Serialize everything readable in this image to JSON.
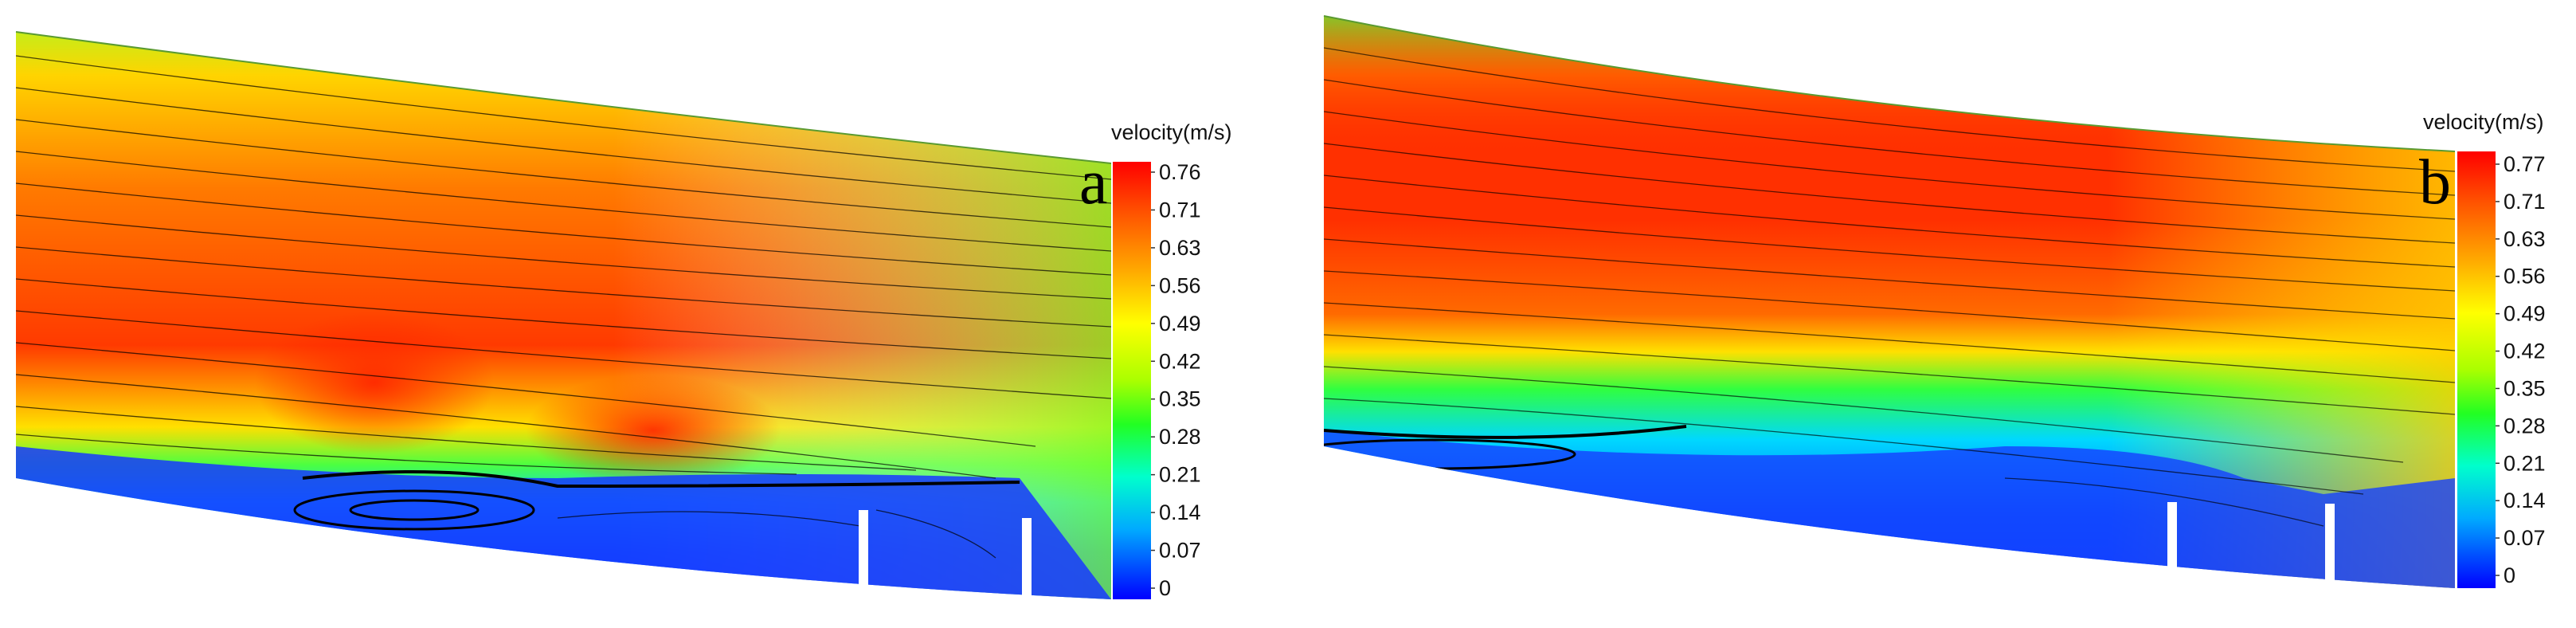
{
  "chart_data": [
    {
      "type": "heatmap",
      "panel_label": "a",
      "colorbar": {
        "title": "velocity(m/s)",
        "range": [
          0,
          0.76
        ],
        "ticks": [
          0.76,
          0.71,
          0.63,
          0.56,
          0.49,
          0.42,
          0.35,
          0.28,
          0.21,
          0.14,
          0.07,
          0
        ],
        "tick_labels": [
          "0.76",
          "0.71",
          "0.63",
          "0.56",
          "0.49",
          "0.42",
          "0.35",
          "0.28",
          "0.21",
          "0.14",
          "0.07",
          "0"
        ],
        "colormap": [
          "#0000ff",
          "#00aaff",
          "#00ffcc",
          "#44ff00",
          "#ccff00",
          "#ffff00",
          "#ffaa00",
          "#ff5500",
          "#ff0000"
        ]
      },
      "field_description_colors": {
        "low": "#1030ff",
        "mid": "#80ff00",
        "high": "#ff2a00"
      },
      "obstacles": 2
    },
    {
      "type": "heatmap",
      "panel_label": "b",
      "colorbar": {
        "title": "velocity(m/s)",
        "range": [
          0,
          0.77
        ],
        "ticks": [
          0.77,
          0.71,
          0.63,
          0.56,
          0.49,
          0.42,
          0.35,
          0.28,
          0.21,
          0.14,
          0.07,
          0
        ],
        "tick_labels": [
          "0.77",
          "0.71",
          "0.63",
          "0.56",
          "0.49",
          "0.42",
          "0.35",
          "0.28",
          "0.21",
          "0.14",
          "0.07",
          "0"
        ],
        "colormap": [
          "#0000ff",
          "#00aaff",
          "#00ffcc",
          "#44ff00",
          "#ccff00",
          "#ffff00",
          "#ffaa00",
          "#ff5500",
          "#ff0000"
        ]
      },
      "field_description_colors": {
        "low": "#1030ff",
        "mid": "#80ff00",
        "high": "#ff2a00"
      },
      "obstacles": 2
    }
  ]
}
